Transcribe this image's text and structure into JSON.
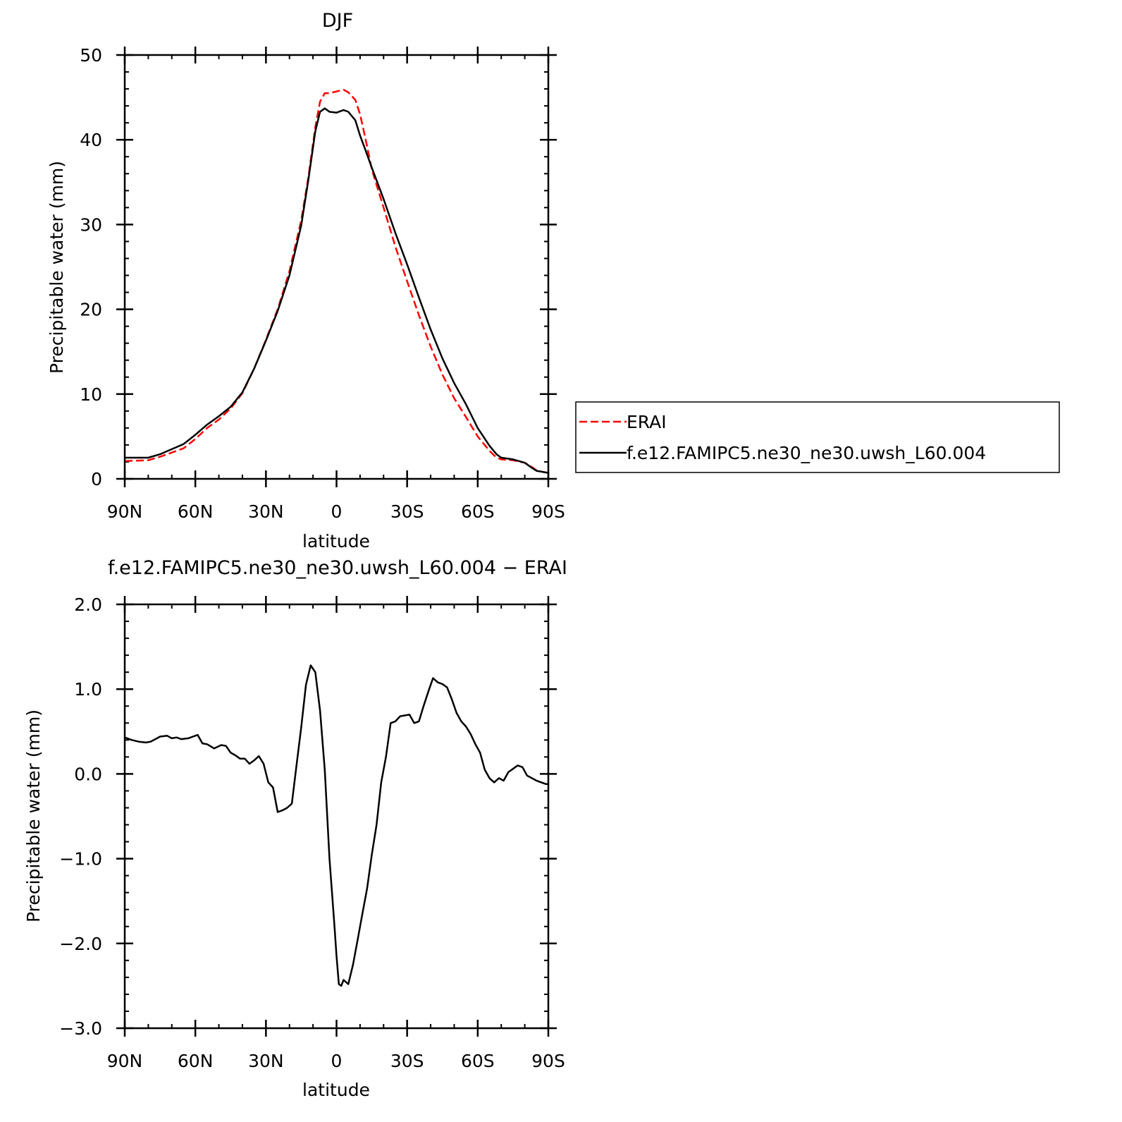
{
  "chart_data": [
    {
      "type": "line",
      "title": "DJF",
      "xlabel": "latitude",
      "ylabel": "Precipitable water (mm)",
      "xlim": [
        -90,
        90
      ],
      "ylim": [
        0,
        50
      ],
      "x_ticks": [
        {
          "value": -90,
          "label": "90N"
        },
        {
          "value": -60,
          "label": "60N"
        },
        {
          "value": -30,
          "label": "30N"
        },
        {
          "value": 0,
          "label": "0"
        },
        {
          "value": 30,
          "label": "30S"
        },
        {
          "value": 60,
          "label": "60S"
        },
        {
          "value": 90,
          "label": "90S"
        }
      ],
      "y_ticks": [
        {
          "value": 0,
          "label": "0"
        },
        {
          "value": 10,
          "label": "10"
        },
        {
          "value": 20,
          "label": "20"
        },
        {
          "value": 30,
          "label": "30"
        },
        {
          "value": 40,
          "label": "40"
        },
        {
          "value": 50,
          "label": "50"
        }
      ],
      "grid": false,
      "legend_position": "right",
      "series": [
        {
          "name": "ERAI",
          "color": "#ff0000",
          "dash": "dashed",
          "x": [
            -90,
            -80,
            -75,
            -70,
            -65,
            -60,
            -55,
            -50,
            -45,
            -40,
            -35,
            -30,
            -25,
            -20,
            -15,
            -12,
            -9,
            -7,
            -5,
            -3,
            0,
            3,
            5,
            8,
            10,
            12,
            15,
            20,
            25,
            30,
            35,
            40,
            45,
            50,
            55,
            60,
            65,
            68,
            70,
            75,
            80,
            83,
            85,
            88,
            90
          ],
          "y": [
            2.1,
            2.2,
            2.6,
            3.1,
            3.6,
            4.7,
            6.0,
            7.0,
            8.3,
            10.1,
            13.0,
            16.4,
            20.0,
            24.5,
            30.5,
            35.5,
            41.5,
            44.5,
            45.5,
            45.5,
            45.7,
            45.9,
            45.6,
            44.7,
            43.0,
            40.5,
            36.5,
            32.0,
            27.4,
            23.3,
            19.3,
            15.6,
            12.3,
            9.5,
            7.3,
            5.0,
            3.3,
            2.5,
            2.3,
            2.2,
            1.9,
            1.4,
            1.0,
            0.8,
            0.7
          ]
        },
        {
          "name": "f.e12.FAMIPC5.ne30_ne30.uwsh_L60.004",
          "color": "#000000",
          "dash": "solid",
          "x": [
            -90,
            -80,
            -75,
            -70,
            -65,
            -60,
            -55,
            -50,
            -45,
            -40,
            -35,
            -30,
            -25,
            -20,
            -15,
            -12,
            -9,
            -7,
            -5,
            -3,
            0,
            3,
            5,
            8,
            10,
            12,
            15,
            20,
            25,
            30,
            35,
            40,
            45,
            50,
            55,
            60,
            65,
            68,
            70,
            75,
            80,
            83,
            85,
            88,
            90
          ],
          "y": [
            2.5,
            2.5,
            2.9,
            3.5,
            4.1,
            5.2,
            6.4,
            7.4,
            8.5,
            10.2,
            13.0,
            16.3,
            19.8,
            24.0,
            29.9,
            35.2,
            41.0,
            43.3,
            43.7,
            43.3,
            43.2,
            43.5,
            43.3,
            42.3,
            40.5,
            39.0,
            36.7,
            33.0,
            29.0,
            25.3,
            21.4,
            17.6,
            14.2,
            11.3,
            8.8,
            6.0,
            3.9,
            2.9,
            2.5,
            2.3,
            1.9,
            1.3,
            0.95,
            0.8,
            0.7
          ]
        }
      ]
    },
    {
      "type": "line",
      "title": "f.e12.FAMIPC5.ne30_ne30.uwsh_L60.004 − ERAI",
      "xlabel": "latitude",
      "ylabel": "Precipitable water (mm)",
      "xlim": [
        -90,
        90
      ],
      "ylim": [
        -3.0,
        2.0
      ],
      "x_ticks": [
        {
          "value": -90,
          "label": "90N"
        },
        {
          "value": -60,
          "label": "60N"
        },
        {
          "value": -30,
          "label": "30N"
        },
        {
          "value": 0,
          "label": "0"
        },
        {
          "value": 30,
          "label": "30S"
        },
        {
          "value": 60,
          "label": "60S"
        },
        {
          "value": 90,
          "label": "90S"
        }
      ],
      "y_ticks": [
        {
          "value": -3.0,
          "label": "−3.0"
        },
        {
          "value": -2.0,
          "label": "−2.0"
        },
        {
          "value": -1.0,
          "label": "−1.0"
        },
        {
          "value": 0.0,
          "label": "0.0"
        },
        {
          "value": 1.0,
          "label": "1.0"
        },
        {
          "value": 2.0,
          "label": "2.0"
        }
      ],
      "grid": false,
      "series": [
        {
          "color": "#000000",
          "dash": "solid",
          "x": [
            -90,
            -87,
            -84,
            -81,
            -79,
            -77,
            -75,
            -72,
            -70,
            -68,
            -66,
            -63,
            -61,
            -59,
            -57,
            -55,
            -52,
            -49,
            -47,
            -45,
            -43,
            -41,
            -39,
            -37,
            -35,
            -33,
            -31,
            -29,
            -27,
            -25,
            -23,
            -21,
            -19,
            -17,
            -15,
            -13,
            -11,
            -9,
            -7,
            -5,
            -3,
            -1,
            0,
            1,
            2,
            3,
            5,
            7,
            9,
            11,
            13,
            15,
            17,
            19,
            21,
            23,
            25,
            27,
            29,
            31,
            33,
            35,
            37,
            39,
            41,
            43,
            45,
            47,
            49,
            51,
            53,
            55,
            57,
            59,
            61,
            63,
            65,
            67,
            69,
            71,
            73,
            75,
            77,
            79,
            81,
            83,
            85,
            87,
            89,
            90
          ],
          "y": [
            0.43,
            0.4,
            0.38,
            0.37,
            0.38,
            0.41,
            0.44,
            0.45,
            0.42,
            0.43,
            0.41,
            0.42,
            0.44,
            0.46,
            0.36,
            0.35,
            0.3,
            0.34,
            0.33,
            0.25,
            0.22,
            0.18,
            0.18,
            0.12,
            0.16,
            0.21,
            0.12,
            -0.1,
            -0.16,
            -0.45,
            -0.43,
            -0.4,
            -0.35,
            0.1,
            0.55,
            1.05,
            1.28,
            1.2,
            0.75,
            0.05,
            -1.0,
            -1.75,
            -2.15,
            -2.48,
            -2.5,
            -2.43,
            -2.48,
            -2.25,
            -1.95,
            -1.65,
            -1.35,
            -0.95,
            -0.6,
            -0.1,
            0.2,
            0.6,
            0.62,
            0.68,
            0.69,
            0.7,
            0.6,
            0.62,
            0.8,
            0.97,
            1.13,
            1.08,
            1.06,
            1.02,
            0.88,
            0.72,
            0.62,
            0.56,
            0.47,
            0.35,
            0.25,
            0.05,
            -0.05,
            -0.1,
            -0.05,
            -0.08,
            0.02,
            0.06,
            0.1,
            0.08,
            -0.02,
            -0.05,
            -0.08,
            -0.1,
            -0.12,
            -0.12
          ]
        }
      ]
    }
  ]
}
